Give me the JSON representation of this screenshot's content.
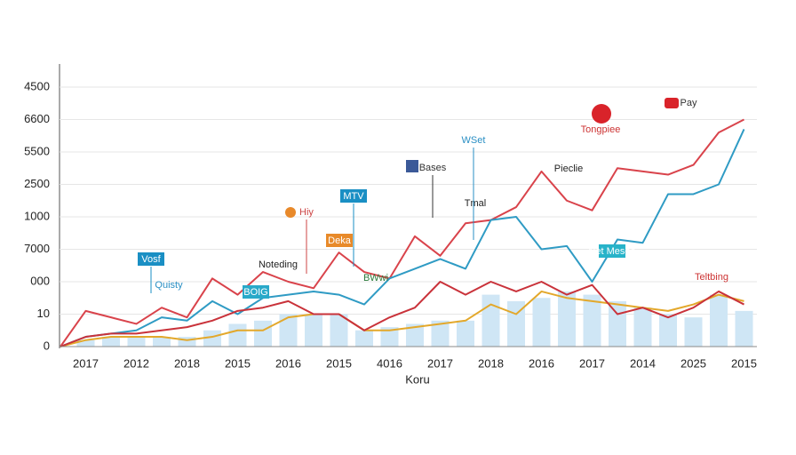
{
  "chart_data": {
    "type": "line",
    "x_label": "Koru",
    "categories": [
      null,
      "2017",
      null,
      "2012",
      null,
      "2018",
      null,
      "2015",
      null,
      "2016",
      null,
      "2015",
      null,
      "4016",
      null,
      "2017",
      null,
      "2018",
      null,
      "2016",
      null,
      "2017",
      null,
      "2014",
      null,
      "2025",
      null,
      "2015"
    ],
    "ylim": [
      0,
      8
    ],
    "yticks": [
      {
        "value": 0,
        "label": "0"
      },
      {
        "value": 1,
        "label": "10"
      },
      {
        "value": 2,
        "label": "000"
      },
      {
        "value": 3,
        "label": "7000"
      },
      {
        "value": 4,
        "label": "1000"
      },
      {
        "value": 5,
        "label": "2500"
      },
      {
        "value": 6,
        "label": "5500"
      },
      {
        "value": 7,
        "label": "6600"
      },
      {
        "value": 8,
        "label": "4500"
      }
    ],
    "grid": true,
    "bars": {
      "color": "#cfe6f5",
      "values": [
        0,
        0.2,
        0.3,
        0.3,
        0.3,
        0.3,
        0.5,
        0.7,
        0.8,
        1.0,
        1.0,
        1.0,
        0.5,
        0.6,
        0.7,
        0.8,
        0.8,
        1.6,
        1.4,
        1.5,
        1.7,
        1.6,
        1.4,
        1.2,
        1.0,
        0.9,
        1.6,
        1.1
      ]
    },
    "series": [
      {
        "color": "#d9434b",
        "values": [
          0,
          1.1,
          0.9,
          0.7,
          1.2,
          0.9,
          2.1,
          1.6,
          2.3,
          2.0,
          1.8,
          2.9,
          2.3,
          2.1,
          3.4,
          2.8,
          3.8,
          3.9,
          4.3,
          5.4,
          4.5,
          4.2,
          5.5,
          5.4,
          5.3,
          5.6,
          6.6,
          7.0
        ]
      },
      {
        "color": "#2f9bc4",
        "values": [
          0,
          0.3,
          0.4,
          0.5,
          0.9,
          0.8,
          1.4,
          1.0,
          1.5,
          1.6,
          1.7,
          1.6,
          1.3,
          2.1,
          2.4,
          2.7,
          2.4,
          3.9,
          4.0,
          3.0,
          3.1,
          2.0,
          3.3,
          3.2,
          4.7,
          4.7,
          5.0,
          6.7
        ]
      },
      {
        "color": "#e3a82b",
        "values": [
          0,
          0.2,
          0.3,
          0.3,
          0.3,
          0.2,
          0.3,
          0.5,
          0.5,
          0.9,
          1.0,
          1.0,
          0.5,
          0.5,
          0.6,
          0.7,
          0.8,
          1.3,
          1.0,
          1.7,
          1.5,
          1.4,
          1.3,
          1.2,
          1.1,
          1.3,
          1.6,
          1.4
        ]
      },
      {
        "color": "#c9323a",
        "values": [
          0,
          0.3,
          0.4,
          0.4,
          0.5,
          0.6,
          0.8,
          1.1,
          1.2,
          1.4,
          1.0,
          1.0,
          0.5,
          0.9,
          1.2,
          2.0,
          1.6,
          2.0,
          1.7,
          2.0,
          1.6,
          1.9,
          1.0,
          1.2,
          0.9,
          1.2,
          1.7,
          1.3
        ]
      }
    ],
    "annotations": [
      "Vosf",
      "Quisty",
      "Noteding",
      "BOIG",
      "Hiy",
      "Deka",
      "MTV",
      "BWwi",
      "Tmal",
      "Bases",
      "WSet",
      "Pieclie",
      "Tongpiee",
      "Pay",
      "Net Mesoe",
      "Teltbing"
    ]
  }
}
